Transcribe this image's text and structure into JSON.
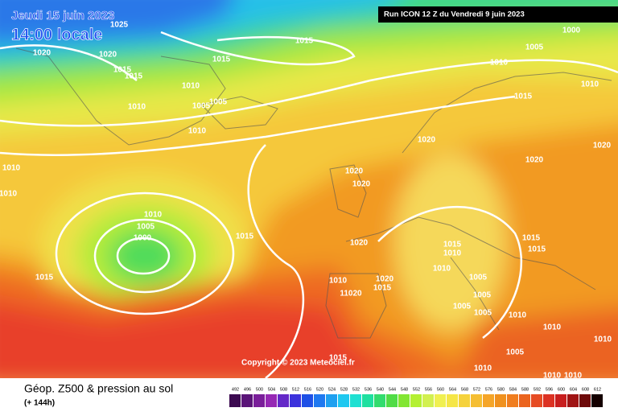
{
  "header": {
    "date": "Jeudi 15 juin 2023",
    "time": "14:00 locale",
    "run": "Run ICON 12 Z du Vendredi 9 juin 2023"
  },
  "copyright": "Copyright © 2023 Meteociel.fr",
  "footer": {
    "title": "Géop. Z500 & pression au sol",
    "lead": "(+ 144h)"
  },
  "isobar_labels": [
    "1025",
    "1020",
    "1020",
    "1015",
    "1015",
    "1015",
    "1015",
    "1010",
    "1010",
    "1005",
    "1005",
    "1010",
    "1010",
    "1010",
    "1010",
    "1005",
    "1000",
    "1015",
    "1015",
    "1000",
    "1005",
    "1010",
    "1010",
    "1015",
    "1020",
    "1020",
    "1020",
    "1020",
    "1020",
    "1020",
    "1015",
    "1010",
    "1015",
    "1015",
    "1010",
    "1005",
    "1005",
    "1005",
    "1005",
    "1010",
    "1010",
    "1020",
    "1015",
    "11020",
    "1010",
    "1010",
    "1005",
    "1010",
    "1010",
    "1010",
    "1015"
  ],
  "legend": {
    "values": [
      492,
      496,
      500,
      504,
      508,
      512,
      516,
      520,
      524,
      528,
      532,
      536,
      540,
      544,
      548,
      552,
      556,
      560,
      564,
      568,
      572,
      576,
      580,
      584,
      588,
      592,
      596,
      600,
      604,
      608,
      612
    ],
    "colors": [
      "#3c0a50",
      "#5a1478",
      "#7a1e9a",
      "#9628b4",
      "#6428c8",
      "#3c32dc",
      "#1e50e6",
      "#1e78f0",
      "#1ea0f0",
      "#1ec8f0",
      "#1ee0d2",
      "#1ee0a0",
      "#32dc6e",
      "#50dc46",
      "#82e632",
      "#b4f032",
      "#d2f050",
      "#f0f050",
      "#f5e646",
      "#f5d23c",
      "#f5be32",
      "#f5a528",
      "#f0911e",
      "#f07d1e",
      "#eb641e",
      "#e64b23",
      "#dc3223",
      "#c81e1e",
      "#a01414",
      "#6e0a0a",
      "#140000"
    ]
  }
}
